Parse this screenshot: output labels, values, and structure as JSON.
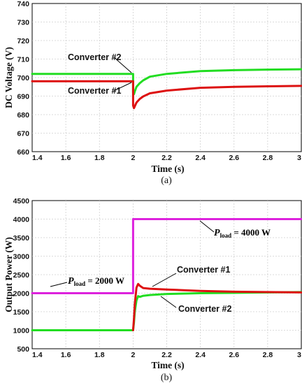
{
  "chart_data": [
    {
      "type": "line",
      "panel_label": "(a)",
      "xlabel": "Time (s)",
      "ylabel": "DC Voltage (V)",
      "xlim": [
        1.4,
        3.0
      ],
      "ylim": [
        660,
        740
      ],
      "xticks": [
        "1.4",
        "1.6",
        "1.8",
        "2",
        "2.2",
        "2.4",
        "2.6",
        "2.8",
        "3"
      ],
      "yticks": [
        "660",
        "670",
        "680",
        "690",
        "700",
        "710",
        "720",
        "730",
        "740"
      ],
      "grid": true,
      "series": [
        {
          "name": "Converter #2",
          "color": "#22dd22",
          "x": [
            1.4,
            2.0,
            2.0,
            2.005,
            2.01,
            2.02,
            2.04,
            2.06,
            2.1,
            2.2,
            2.4,
            2.6,
            2.8,
            3.0
          ],
          "y": [
            702,
            702,
            692,
            691,
            692.5,
            695,
            697,
            698.5,
            700.5,
            702,
            703.5,
            704,
            704.3,
            704.5
          ]
        },
        {
          "name": "Converter #1",
          "color": "#dd1111",
          "x": [
            1.4,
            2.0,
            2.0,
            2.005,
            2.01,
            2.02,
            2.04,
            2.06,
            2.1,
            2.2,
            2.4,
            2.6,
            2.8,
            3.0
          ],
          "y": [
            698,
            698,
            685,
            683.5,
            684.5,
            686.5,
            688.5,
            689.8,
            691.5,
            693,
            694.5,
            695,
            695.3,
            695.5
          ]
        }
      ],
      "annotations": {
        "conv2_label": "Converter #2",
        "conv1_label": "Converter #1"
      }
    },
    {
      "type": "line",
      "panel_label": "(b)",
      "xlabel": "Time (s)",
      "ylabel": "Output Power (W)",
      "xlim": [
        1.4,
        3.0
      ],
      "ylim": [
        500,
        4500
      ],
      "xticks": [
        "1.4",
        "1.6",
        "1.8",
        "2",
        "2.2",
        "2.4",
        "2.6",
        "2.8",
        "3"
      ],
      "yticks": [
        "500",
        "1000",
        "1500",
        "2000",
        "2500",
        "3000",
        "3500",
        "4000",
        "4500"
      ],
      "grid": true,
      "series": [
        {
          "name": "P_load",
          "color": "#dd22dd",
          "x": [
            1.4,
            2.0,
            2.0,
            3.0
          ],
          "y": [
            2000,
            2000,
            4000,
            4000
          ]
        },
        {
          "name": "Converter #2",
          "color": "#22dd22",
          "x": [
            1.4,
            2.0,
            2.005,
            2.01,
            2.02,
            2.03,
            2.04,
            2.06,
            2.1,
            2.2,
            2.4,
            2.6,
            2.8,
            3.0
          ],
          "y": [
            1000,
            1000,
            1200,
            1500,
            1800,
            1920,
            1900,
            1930,
            1950,
            1980,
            2000,
            2010,
            2020,
            2030
          ]
        },
        {
          "name": "Converter #1",
          "color": "#dd1111",
          "x": [
            2.0,
            2.005,
            2.01,
            2.02,
            2.03,
            2.04,
            2.06,
            2.1,
            2.2,
            2.4,
            2.6,
            2.8,
            3.0
          ],
          "y": [
            1000,
            1300,
            1700,
            2150,
            2250,
            2200,
            2140,
            2120,
            2100,
            2060,
            2040,
            2030,
            2020
          ]
        }
      ],
      "annotations": {
        "pload_high_prefix": "P",
        "pload_high_sub": "load",
        "pload_high_value": " = 4000 W",
        "pload_low_prefix": "P",
        "pload_low_sub": "load",
        "pload_low_value": " = 2000 W",
        "conv1_label": "Converter #1",
        "conv2_label": "Converter #2"
      }
    }
  ]
}
